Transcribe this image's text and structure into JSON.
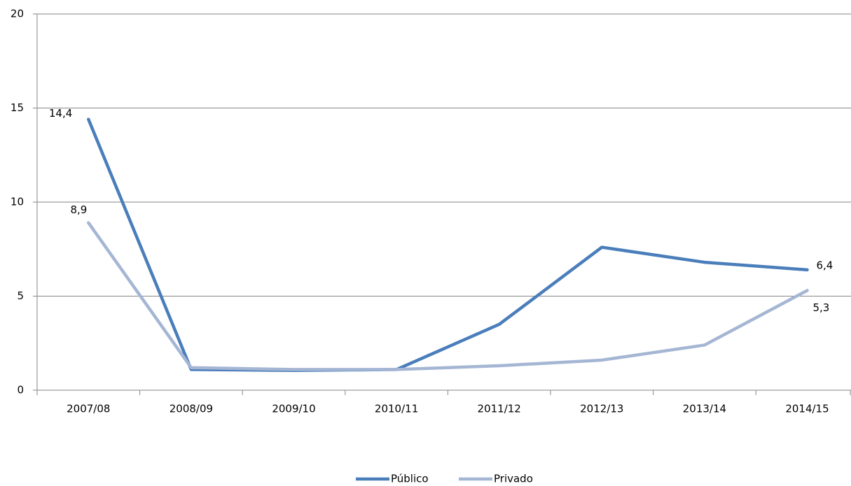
{
  "chart_data": {
    "type": "line",
    "categories": [
      "2007/08",
      "2008/09",
      "2009/10",
      "2010/11",
      "2011/12",
      "2012/13",
      "2013/14",
      "2014/15"
    ],
    "series": [
      {
        "name": "Público",
        "color": "#4a7ebb",
        "values": [
          14.4,
          1.1,
          1.05,
          1.1,
          3.5,
          7.6,
          6.8,
          6.4
        ],
        "value_labels": [
          "14,4",
          null,
          null,
          null,
          null,
          null,
          null,
          "6,4"
        ]
      },
      {
        "name": "Privado",
        "color": "#a5b6d4",
        "values": [
          8.9,
          1.2,
          1.1,
          1.1,
          1.3,
          1.6,
          2.4,
          5.3
        ],
        "value_labels": [
          "8,9",
          null,
          null,
          null,
          null,
          null,
          null,
          "5,3"
        ]
      }
    ],
    "ylim": [
      0,
      20
    ],
    "yticks": [
      0,
      5,
      10,
      15,
      20
    ],
    "grid": true,
    "legend": "bottom"
  }
}
